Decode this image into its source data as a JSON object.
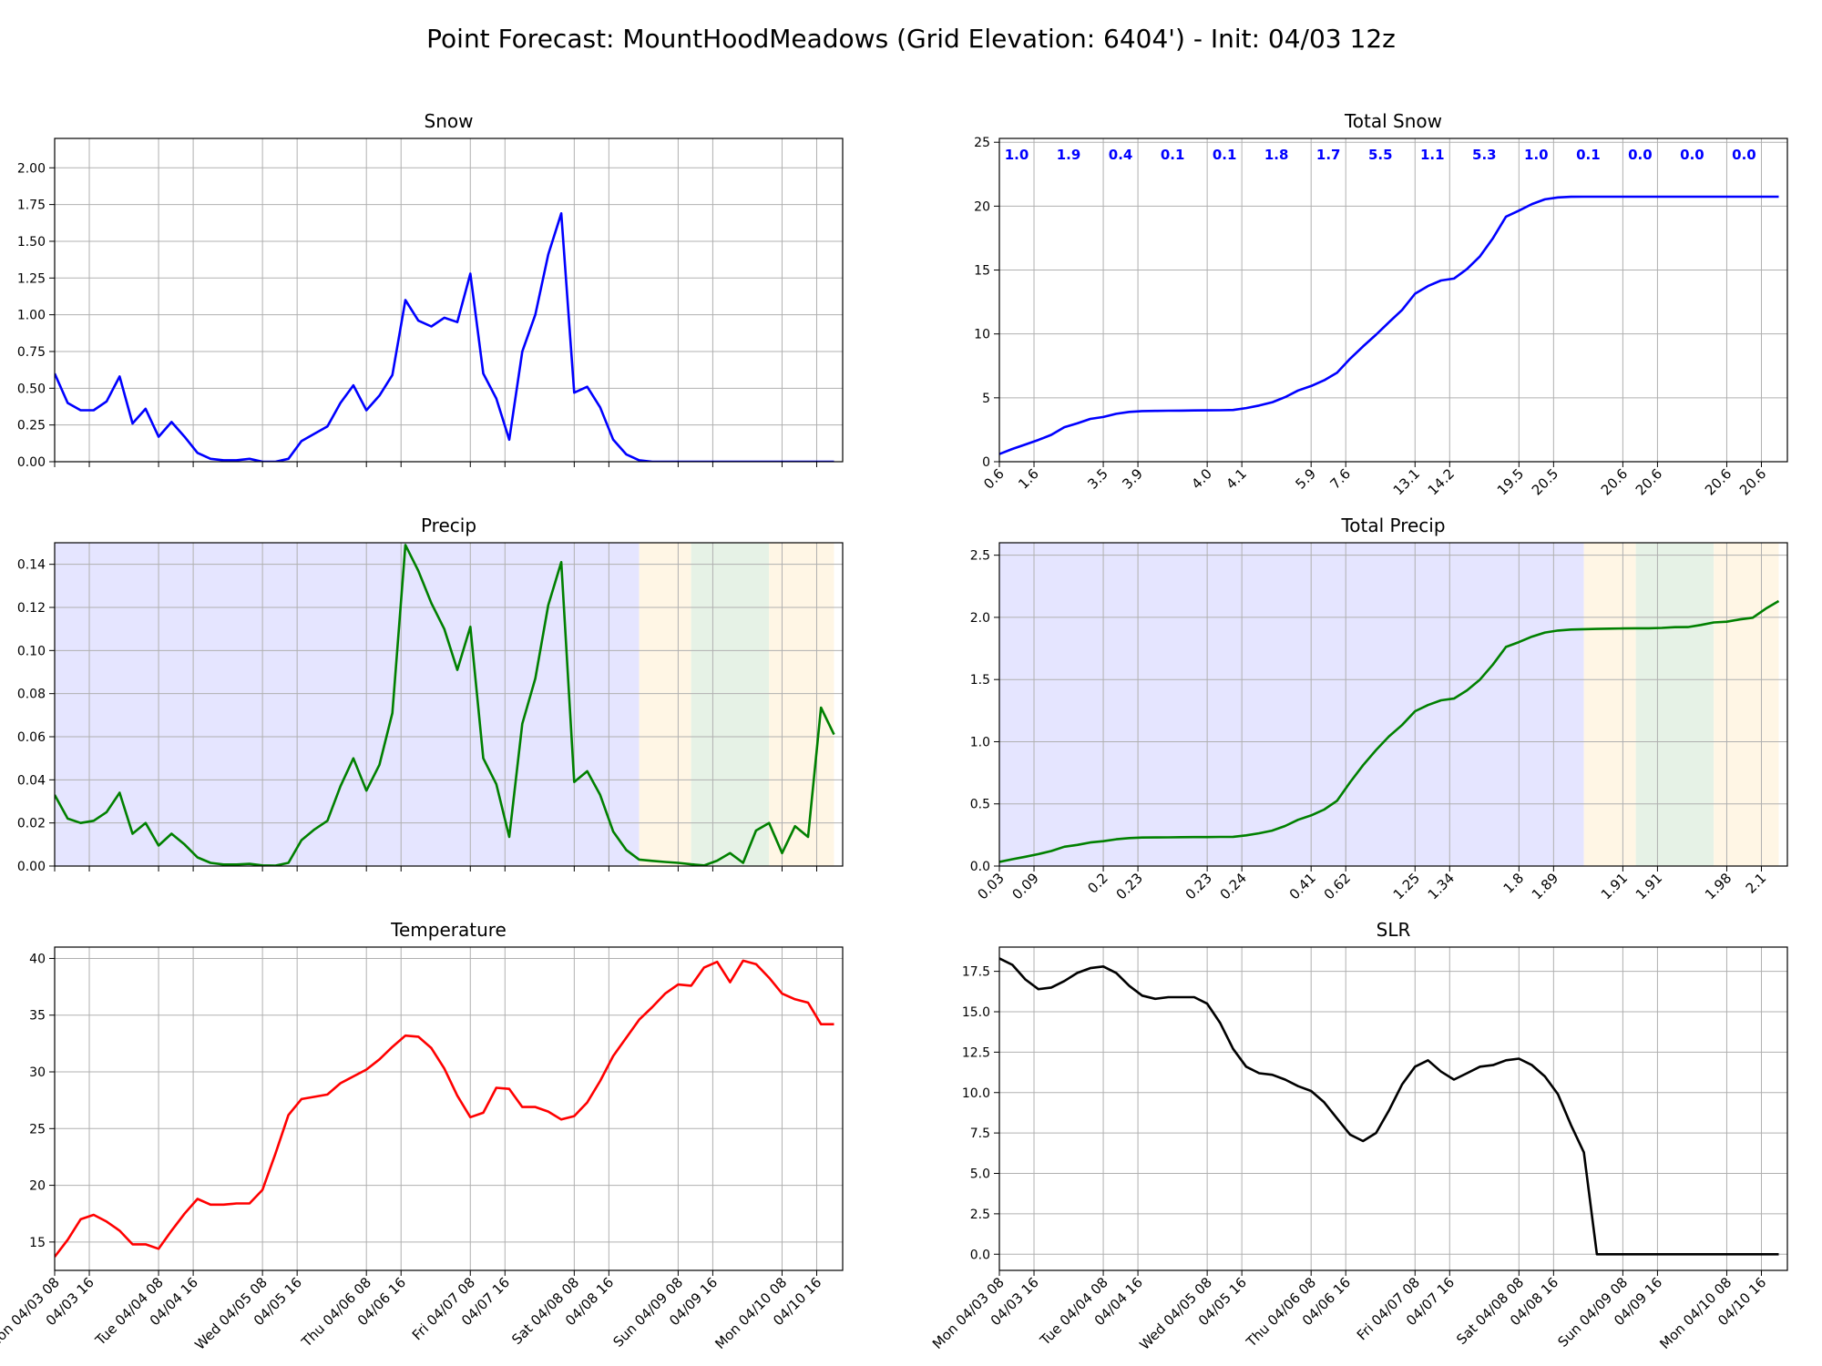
{
  "title": "Point Forecast: MountHoodMeadows (Grid Elevation: 6404') - Init: 04/03 12z",
  "colors": {
    "snow": "#0000ff",
    "precip": "#008000",
    "temperature": "#ff0000",
    "slr": "#000000",
    "band_snow": "#e5e5ff",
    "band_mix": "#fff6e5",
    "band_rain": "#e6f2e6",
    "grid": "#b0b0b0"
  },
  "time_axis": {
    "ticks": [
      "Mon 04/03 08",
      "04/03 16",
      "Tue 04/04 08",
      "04/04 16",
      "Wed 04/05 08",
      "04/05 16",
      "Thu 04/06 08",
      "04/06 16",
      "Fri 04/07 08",
      "04/07 16",
      "Sat 04/08 08",
      "04/08 16",
      "Sun 04/09 08",
      "04/09 16",
      "Mon 04/10 08",
      "04/10 16"
    ]
  },
  "chart_data": [
    {
      "id": "snow",
      "type": "line",
      "title": "Snow",
      "ylim": [
        0,
        2.2
      ],
      "yticks": [
        "0.00",
        "0.25",
        "0.50",
        "0.75",
        "1.00",
        "1.25",
        "1.50",
        "1.75",
        "2.00"
      ],
      "x_hours": [
        8,
        11,
        14,
        17,
        20,
        23,
        26,
        29,
        32,
        35,
        38,
        41,
        44,
        47,
        50,
        53,
        56,
        59,
        62,
        65,
        68,
        71,
        74,
        77,
        80,
        83,
        86,
        89,
        92,
        95,
        98,
        101,
        104,
        107,
        110,
        113,
        116,
        119,
        122,
        125,
        128,
        131,
        134,
        137,
        140,
        143,
        146,
        149,
        152,
        155,
        158,
        161,
        164,
        167,
        170,
        173,
        176,
        179,
        182,
        185,
        188
      ],
      "values": [
        0.6,
        0.4,
        0.35,
        0.35,
        0.41,
        0.58,
        0.26,
        0.36,
        0.17,
        0.27,
        0.17,
        0.06,
        0.02,
        0.01,
        0.01,
        0.02,
        0.0,
        0.0,
        0.02,
        0.14,
        0.19,
        0.24,
        0.4,
        0.52,
        0.35,
        0.45,
        0.59,
        1.1,
        0.96,
        0.92,
        0.98,
        0.95,
        1.28,
        0.6,
        0.43,
        0.15,
        0.75,
        1.0,
        1.41,
        1.69,
        0.47,
        0.51,
        0.37,
        0.15,
        0.05,
        0.01,
        0.0,
        0.0,
        0.0,
        0.0,
        0.0,
        0.0,
        0.0,
        0.0,
        0.0,
        0.0,
        0.0,
        0.0,
        0.0,
        0.0,
        0.0
      ]
    },
    {
      "id": "total_snow",
      "type": "line",
      "title": "Total Snow",
      "ylim": [
        0,
        25.3
      ],
      "yticks": [
        "0",
        "5",
        "10",
        "15",
        "20",
        "25"
      ],
      "x_hours": [
        8,
        11,
        14,
        17,
        20,
        23,
        26,
        29,
        32,
        35,
        38,
        41,
        44,
        47,
        50,
        53,
        56,
        59,
        62,
        65,
        68,
        71,
        74,
        77,
        80,
        83,
        86,
        89,
        92,
        95,
        98,
        101,
        104,
        107,
        110,
        113,
        116,
        119,
        122,
        125,
        128,
        131,
        134,
        137,
        140,
        143,
        146,
        149,
        152,
        155,
        158,
        161,
        164,
        167,
        170,
        173,
        176,
        179,
        182,
        185,
        188
      ],
      "values": [
        0.6,
        1.0,
        1.35,
        1.7,
        2.1,
        2.7,
        3.0,
        3.35,
        3.5,
        3.75,
        3.9,
        3.96,
        3.98,
        3.99,
        4.0,
        4.01,
        4.02,
        4.03,
        4.05,
        4.2,
        4.4,
        4.65,
        5.05,
        5.57,
        5.92,
        6.37,
        6.96,
        8.06,
        9.02,
        9.94,
        10.92,
        11.87,
        13.15,
        13.75,
        14.18,
        14.33,
        15.08,
        16.08,
        17.49,
        19.18,
        19.65,
        20.16,
        20.53,
        20.68,
        20.73,
        20.74,
        20.74,
        20.74,
        20.74,
        20.74,
        20.74,
        20.74,
        20.74,
        20.74,
        20.74,
        20.74,
        20.74,
        20.74,
        20.74,
        20.74,
        20.74
      ],
      "xtick_labels": [
        "0.6",
        "1.6",
        "3.5",
        "3.9",
        "4.0",
        "4.1",
        "5.9",
        "7.6",
        "13.1",
        "14.2",
        "19.5",
        "20.5",
        "20.6",
        "20.6",
        "20.6",
        "20.6"
      ],
      "period_labels": [
        "1.0",
        "1.9",
        "0.4",
        "0.1",
        "0.1",
        "1.8",
        "1.7",
        "5.5",
        "1.1",
        "5.3",
        "1.0",
        "0.1",
        "0.0",
        "0.0",
        "0.0"
      ]
    },
    {
      "id": "precip",
      "type": "line",
      "title": "Precip",
      "ylim": [
        0,
        0.15
      ],
      "yticks": [
        "0.00",
        "0.02",
        "0.04",
        "0.06",
        "0.08",
        "0.10",
        "0.12",
        "0.14"
      ],
      "x_hours": [
        8,
        11,
        14,
        17,
        20,
        23,
        26,
        29,
        32,
        35,
        38,
        41,
        44,
        47,
        50,
        53,
        56,
        59,
        62,
        65,
        68,
        71,
        74,
        77,
        80,
        83,
        86,
        89,
        92,
        95,
        98,
        101,
        104,
        107,
        110,
        113,
        116,
        119,
        122,
        125,
        128,
        131,
        134,
        137,
        140,
        143,
        146,
        149,
        152,
        155,
        158,
        161,
        164,
        167,
        170,
        173,
        176,
        179,
        182,
        185,
        188
      ],
      "values": [
        0.033,
        0.022,
        0.02,
        0.021,
        0.025,
        0.034,
        0.015,
        0.02,
        0.0095,
        0.015,
        0.01,
        0.004,
        0.0015,
        0.0007,
        0.0007,
        0.001,
        0.0003,
        0.0002,
        0.0015,
        0.012,
        0.017,
        0.021,
        0.037,
        0.05,
        0.035,
        0.047,
        0.071,
        0.149,
        0.137,
        0.122,
        0.11,
        0.091,
        0.111,
        0.05,
        0.038,
        0.0135,
        0.066,
        0.087,
        0.121,
        0.141,
        0.039,
        0.044,
        0.033,
        0.016,
        0.0075,
        0.003,
        0.0024,
        0.0019,
        0.0015,
        0.0008,
        0.0003,
        0.0025,
        0.006,
        0.0015,
        0.0165,
        0.02,
        0.006,
        0.0185,
        0.0135,
        0.0735,
        0.061
      ],
      "bands": [
        {
          "type": "snow",
          "start": 8,
          "end": 143
        },
        {
          "type": "mix",
          "start": 143,
          "end": 155
        },
        {
          "type": "rain",
          "start": 155,
          "end": 173
        },
        {
          "type": "mix",
          "start": 173,
          "end": 188
        }
      ]
    },
    {
      "id": "total_precip",
      "type": "line",
      "title": "Total Precip",
      "ylim": [
        0,
        2.6
      ],
      "yticks": [
        "0.0",
        "0.5",
        "1.0",
        "1.5",
        "2.0",
        "2.5"
      ],
      "x_hours": [
        8,
        11,
        14,
        17,
        20,
        23,
        26,
        29,
        32,
        35,
        38,
        41,
        44,
        47,
        50,
        53,
        56,
        59,
        62,
        65,
        68,
        71,
        74,
        77,
        80,
        83,
        86,
        89,
        92,
        95,
        98,
        101,
        104,
        107,
        110,
        113,
        116,
        119,
        122,
        125,
        128,
        131,
        134,
        137,
        140,
        143,
        146,
        149,
        152,
        155,
        158,
        161,
        164,
        167,
        170,
        173,
        176,
        179,
        182,
        185,
        188
      ],
      "values": [
        0.033,
        0.055,
        0.075,
        0.096,
        0.121,
        0.155,
        0.17,
        0.19,
        0.2,
        0.215,
        0.225,
        0.229,
        0.23,
        0.231,
        0.232,
        0.233,
        0.233,
        0.234,
        0.235,
        0.247,
        0.264,
        0.285,
        0.322,
        0.372,
        0.407,
        0.454,
        0.525,
        0.674,
        0.811,
        0.933,
        1.043,
        1.134,
        1.245,
        1.295,
        1.333,
        1.347,
        1.413,
        1.5,
        1.621,
        1.762,
        1.801,
        1.845,
        1.878,
        1.894,
        1.902,
        1.905,
        1.907,
        1.909,
        1.911,
        1.912,
        1.912,
        1.915,
        1.921,
        1.922,
        1.939,
        1.959,
        1.965,
        1.983,
        1.997,
        2.07,
        2.131
      ],
      "xtick_labels": [
        "0.03",
        "0.09",
        "0.2",
        "0.23",
        "0.23",
        "0.24",
        "0.41",
        "0.62",
        "1.25",
        "1.34",
        "1.8",
        "1.89",
        "1.91",
        "1.91",
        "1.98",
        "2.1"
      ],
      "bands": [
        {
          "type": "snow",
          "start": 8,
          "end": 143
        },
        {
          "type": "mix",
          "start": 143,
          "end": 155
        },
        {
          "type": "rain",
          "start": 155,
          "end": 173
        },
        {
          "type": "mix",
          "start": 173,
          "end": 188
        }
      ]
    },
    {
      "id": "temperature",
      "type": "line",
      "title": "Temperature",
      "ylim": [
        12.5,
        41
      ],
      "yticks": [
        "15",
        "20",
        "25",
        "30",
        "35",
        "40"
      ],
      "x_hours": [
        8,
        11,
        14,
        17,
        20,
        23,
        26,
        29,
        32,
        35,
        38,
        41,
        44,
        47,
        50,
        53,
        56,
        59,
        62,
        65,
        68,
        71,
        74,
        77,
        80,
        83,
        86,
        89,
        92,
        95,
        98,
        101,
        104,
        107,
        110,
        113,
        116,
        119,
        122,
        125,
        128,
        131,
        134,
        137,
        140,
        143,
        146,
        149,
        152,
        155,
        158,
        161,
        164,
        167,
        170,
        173,
        176,
        179,
        182,
        185,
        188
      ],
      "values": [
        13.7,
        15.2,
        17.0,
        17.4,
        16.8,
        16.0,
        14.8,
        14.8,
        14.4,
        16.0,
        17.5,
        18.8,
        18.3,
        18.3,
        18.4,
        18.4,
        19.6,
        22.8,
        26.2,
        27.6,
        27.8,
        28.0,
        29.0,
        29.6,
        30.2,
        31.1,
        32.2,
        33.2,
        33.1,
        32.1,
        30.3,
        27.9,
        26.0,
        26.4,
        28.6,
        28.5,
        26.9,
        26.9,
        26.5,
        25.8,
        26.1,
        27.3,
        29.2,
        31.4,
        33.0,
        34.6,
        35.7,
        36.9,
        37.7,
        37.6,
        39.2,
        39.7,
        37.9,
        39.8,
        39.5,
        38.3,
        36.9,
        36.4,
        36.1,
        34.2,
        34.2
      ]
    },
    {
      "id": "slr",
      "type": "line",
      "title": "SLR",
      "ylim": [
        -1,
        19
      ],
      "yticks": [
        "0.0",
        "2.5",
        "5.0",
        "7.5",
        "10.0",
        "12.5",
        "15.0",
        "17.5"
      ],
      "x_hours": [
        8,
        11,
        14,
        17,
        20,
        23,
        26,
        29,
        32,
        35,
        38,
        41,
        44,
        47,
        50,
        53,
        56,
        59,
        62,
        65,
        68,
        71,
        74,
        77,
        80,
        83,
        86,
        89,
        92,
        95,
        98,
        101,
        104,
        107,
        110,
        113,
        116,
        119,
        122,
        125,
        128,
        131,
        134,
        137,
        140,
        143,
        146,
        149,
        152,
        155,
        158,
        161,
        164,
        167,
        170,
        173,
        176,
        179,
        182,
        185,
        188
      ],
      "values": [
        18.3,
        17.9,
        17.0,
        16.4,
        16.5,
        16.9,
        17.4,
        17.7,
        17.8,
        17.4,
        16.6,
        16.0,
        15.8,
        15.9,
        15.9,
        15.9,
        15.5,
        14.3,
        12.7,
        11.6,
        11.2,
        11.1,
        10.8,
        10.4,
        10.1,
        9.4,
        8.4,
        7.4,
        7.0,
        7.5,
        8.9,
        10.5,
        11.6,
        12.0,
        11.3,
        10.8,
        11.2,
        11.6,
        11.7,
        12.0,
        12.1,
        11.7,
        11.0,
        9.9,
        8.0,
        6.3,
        0.0,
        0.0,
        0.0,
        0.0,
        0.0,
        0.0,
        0.0,
        0.0,
        0.0,
        0.0,
        0.0,
        0.0,
        0.0,
        0.0,
        0.0
      ]
    }
  ]
}
